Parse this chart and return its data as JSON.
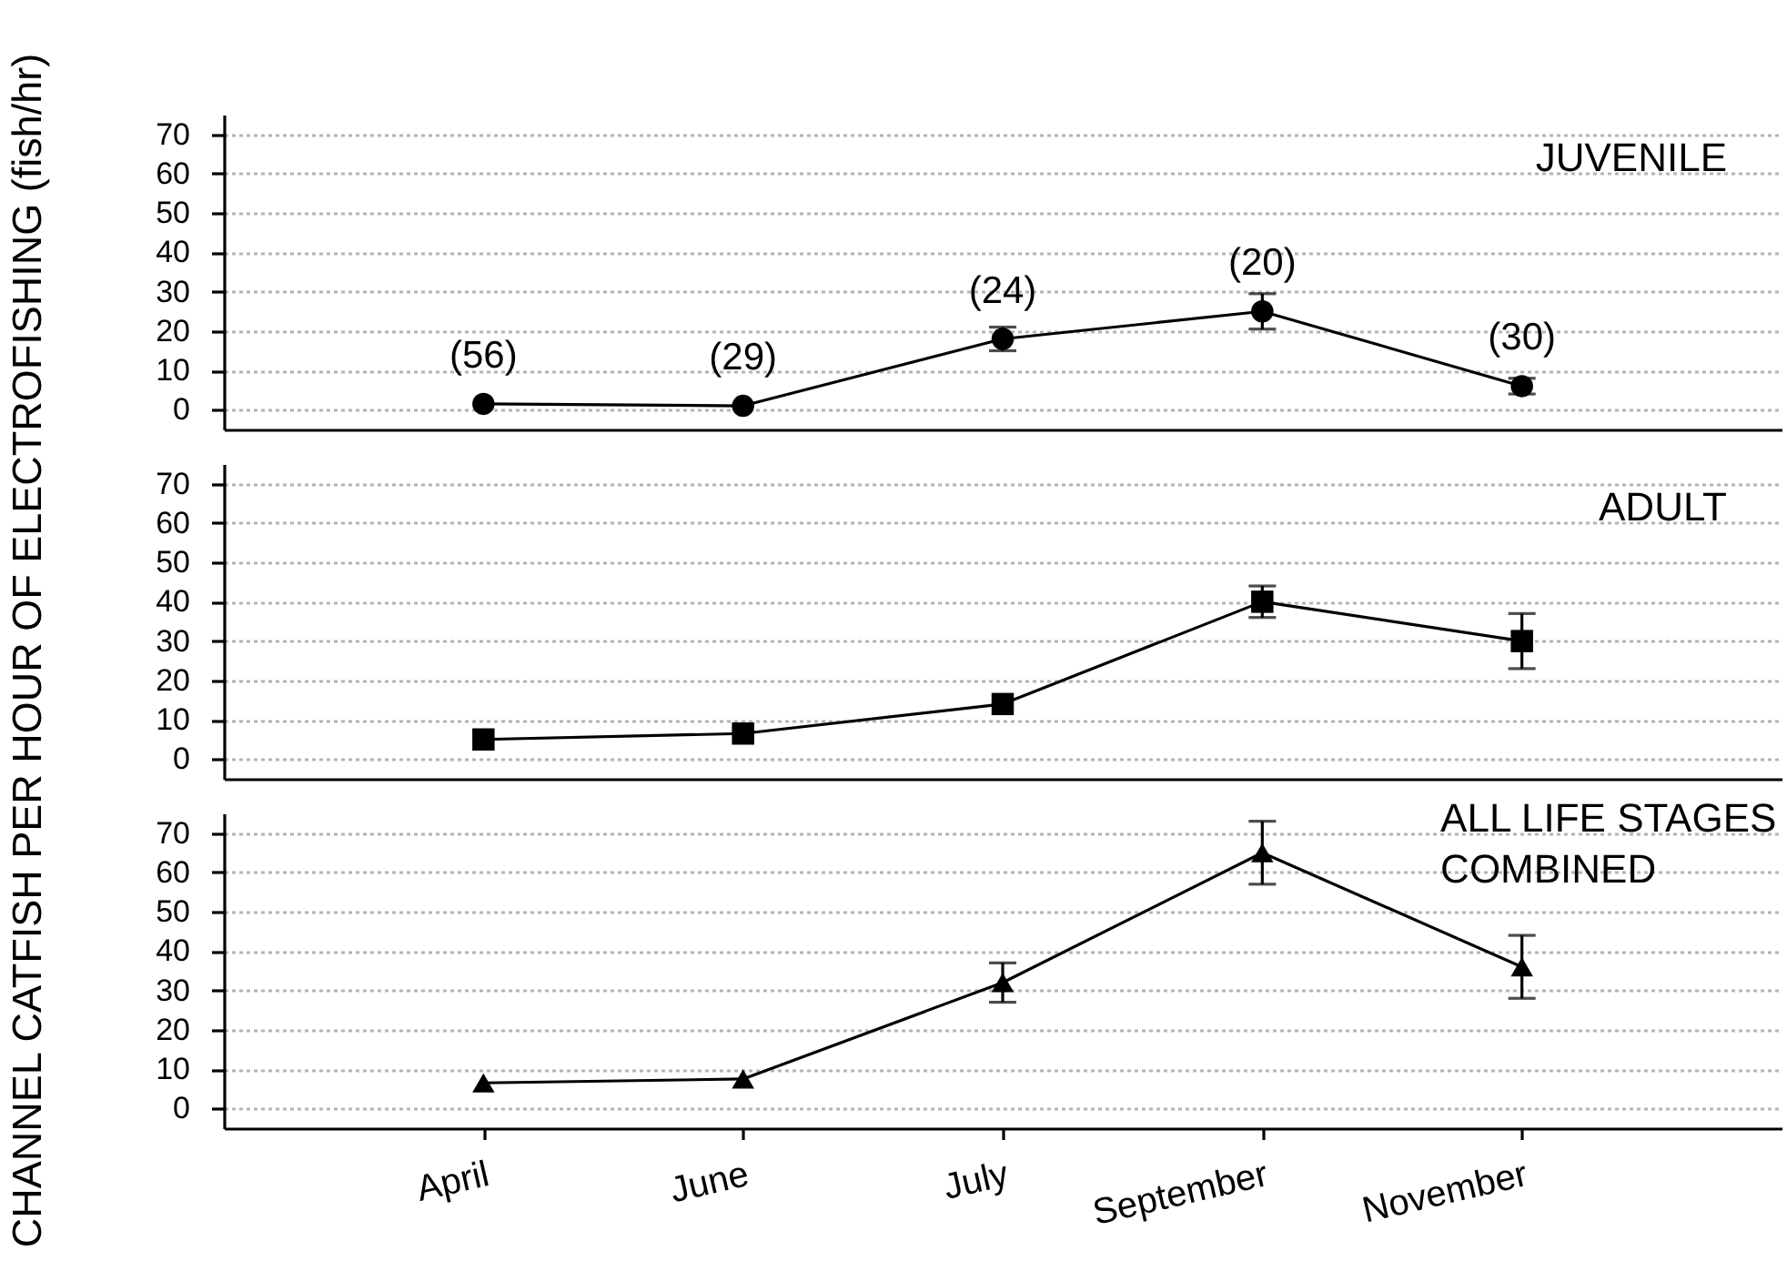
{
  "chart_data": [
    {
      "type": "line",
      "title": "JUVENILE",
      "categories": [
        "April",
        "June",
        "July",
        "September",
        "November"
      ],
      "series": [
        {
          "color": "#000000",
          "values": [
            1.5,
            1,
            18,
            25,
            6
          ],
          "errors": [
            null,
            null,
            3,
            4.5,
            2
          ]
        }
      ],
      "ylim": [
        -5,
        75
      ],
      "yticks": [
        0,
        10,
        20,
        30,
        40,
        50,
        60,
        70
      ],
      "grid": "y",
      "marker": "circle",
      "line_style": "solid",
      "tick_labels": "y",
      "annotations": [
        {
          "text": "(56)",
          "x": "April",
          "y": 1.5
        },
        {
          "text": "(29)",
          "x": "June",
          "y": 1
        },
        {
          "text": "(24)",
          "x": "July",
          "y": 18
        },
        {
          "text": "(20)",
          "x": "September",
          "y": 25
        },
        {
          "text": "(30)",
          "x": "November",
          "y": 6
        }
      ]
    },
    {
      "type": "line",
      "title": "ADULT",
      "ylabel": "CHANNEL CATFISH PER HOUR OF ELECTROFISHING (fish/hr)",
      "categories": [
        "April",
        "June",
        "July",
        "September",
        "November"
      ],
      "series": [
        {
          "color": "#000000",
          "values": [
            5,
            6.5,
            14,
            40,
            30
          ],
          "errors": [
            null,
            null,
            null,
            4,
            7
          ]
        }
      ],
      "ylim": [
        -5,
        75
      ],
      "yticks": [
        0,
        10,
        20,
        30,
        40,
        50,
        60,
        70
      ],
      "grid": "y",
      "marker": "square",
      "line_style": "solid",
      "tick_labels": "y"
    },
    {
      "type": "line",
      "title": "ALL LIFE STAGES COMBINED",
      "categories": [
        "April",
        "June",
        "July",
        "September",
        "November"
      ],
      "series": [
        {
          "color": "#000000",
          "values": [
            6.5,
            7.5,
            32,
            65,
            36
          ],
          "errors": [
            null,
            null,
            5,
            8,
            8
          ]
        }
      ],
      "ylim": [
        -5,
        75
      ],
      "yticks": [
        0,
        10,
        20,
        30,
        40,
        50,
        60,
        70
      ],
      "grid": "y",
      "marker": "triangle",
      "line_style": "solid"
    }
  ]
}
